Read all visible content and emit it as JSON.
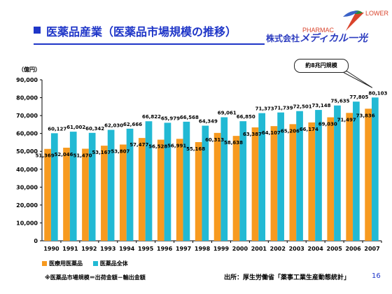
{
  "slide": {
    "title": "医薬品産業（医薬品市場規模の推移）",
    "brand_logo_text": "PHARMAC LOWER",
    "brand_company_prefix": "株式会社",
    "brand_company_name": "メディカル一光",
    "callout": "約8兆円規模",
    "footnote": "※医薬品市場規模＝出荷金額－輸出金額",
    "source": "出所：厚生労働省「薬事工業生産動態統計」",
    "page_number": "16"
  },
  "colors": {
    "series_ethical": "#f79a1f",
    "series_total": "#22b9d4",
    "title": "#1f36c8"
  },
  "chart_data": {
    "type": "bar",
    "unit_label": "（億円）",
    "categories": [
      "1990",
      "1991",
      "1992",
      "1993",
      "1994",
      "1995",
      "1996",
      "1997",
      "1998",
      "1999",
      "2000",
      "2001",
      "2002",
      "2003",
      "2004",
      "2005",
      "2006",
      "2007"
    ],
    "series": [
      {
        "name": "医療用医薬品",
        "color": "#f79a1f",
        "values": [
          51369,
          52046,
          51470,
          53167,
          53807,
          57477,
          56528,
          56991,
          55168,
          60313,
          58638,
          63387,
          64107,
          65206,
          66174,
          69030,
          71497,
          73836
        ],
        "labels": [
          "51,369",
          "52,046",
          "51,470",
          "53,167",
          "53,807",
          "57,477",
          "56,528",
          "56,991",
          "55,168",
          "60,313",
          "58,638",
          "63,387",
          "64,107",
          "65,206",
          "66,174",
          "69,030",
          "71,497",
          "73,836"
        ]
      },
      {
        "name": "医薬品全体",
        "color": "#22b9d4",
        "values": [
          60127,
          61002,
          60342,
          62030,
          62666,
          66822,
          65979,
          66568,
          64349,
          69061,
          66850,
          71373,
          71739,
          72501,
          73148,
          75635,
          77805,
          80103
        ],
        "labels": [
          "60,127",
          "61,002",
          "60,342",
          "62,030",
          "62,666",
          "66,822",
          "65,979",
          "66,568",
          "64,349",
          "69,061",
          "66,850",
          "71,373",
          "71,739",
          "72,501",
          "73,148",
          "75,635",
          "77,805",
          "80,103"
        ]
      }
    ],
    "ylim": [
      0,
      90000
    ],
    "yticks": [
      "0",
      "10,000",
      "20,000",
      "30,000",
      "40,000",
      "50,000",
      "60,000",
      "70,000",
      "80,000",
      "90,000"
    ],
    "grid": false,
    "legend_position": "bottom-left"
  }
}
